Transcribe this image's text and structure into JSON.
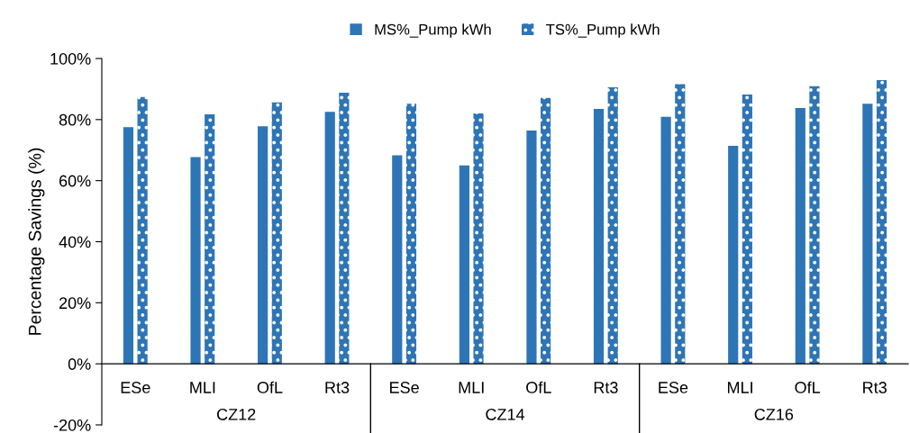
{
  "chart_data": {
    "type": "bar",
    "ylabel": "Percentage Savings (%)",
    "categories": [
      "ESe",
      "MLI",
      "OfL",
      "Rt3",
      "ESe",
      "MLI",
      "OfL",
      "Rt3",
      "ESe",
      "MLI",
      "OfL",
      "Rt3"
    ],
    "series": [
      {
        "name": "MS%_Pump kWh",
        "color": "#2e75b6",
        "values": [
          77.5,
          67.7,
          77.8,
          82.5,
          68.3,
          65.0,
          76.4,
          83.5,
          80.9,
          71.4,
          83.8,
          85.2
        ]
      },
      {
        "name": "TS%_Pump kWh",
        "color": "#2e75b6",
        "values": [
          87.4,
          81.7,
          85.6,
          88.8,
          85.2,
          82.0,
          87.1,
          90.6,
          91.6,
          88.2,
          90.9,
          92.9
        ]
      }
    ],
    "ylim": [
      -20,
      100
    ],
    "yticks": [
      {
        "value": -20,
        "label": "-20%"
      },
      {
        "value": 0,
        "label": "0%"
      },
      {
        "value": 20,
        "label": "20%"
      },
      {
        "value": 40,
        "label": "40%"
      },
      {
        "value": 60,
        "label": "60%"
      },
      {
        "value": 80,
        "label": "80%"
      },
      {
        "value": 100,
        "label": "100%"
      }
    ],
    "annotations": [
      "CZ12",
      "CZ14",
      "CZ16"
    ],
    "grid": false,
    "legend": "top"
  }
}
